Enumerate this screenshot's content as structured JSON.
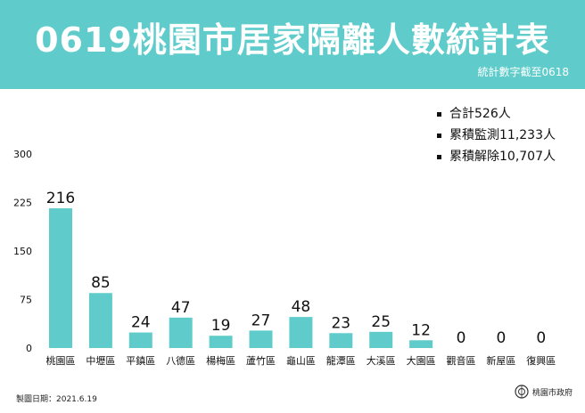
{
  "header": {
    "title": "0619桃園市居家隔離人數統計表",
    "subtitle": "統計數字截至0618"
  },
  "summary": {
    "items": [
      {
        "label": "合計526人"
      },
      {
        "label": "累積監測11,233人"
      },
      {
        "label": "累積解除10,707人"
      }
    ]
  },
  "footer": {
    "date": "製圖日期：2021.6.19",
    "org_logo_text": "桃園市政府"
  },
  "colors": {
    "header_bg": "#5fcccb",
    "bar": "#5fcccb"
  },
  "chart_data": {
    "type": "bar",
    "title": "",
    "xlabel": "",
    "ylabel": "",
    "ylim": [
      0,
      300
    ],
    "yticks": [
      0,
      75,
      150,
      225,
      300
    ],
    "grid": false,
    "legend": "none",
    "categories": [
      "桃園區",
      "中壢區",
      "平鎮區",
      "八德區",
      "楊梅區",
      "蘆竹區",
      "龜山區",
      "龍潭區",
      "大溪區",
      "大園區",
      "觀音區",
      "新屋區",
      "復興區"
    ],
    "values": [
      216,
      85,
      24,
      47,
      19,
      27,
      48,
      23,
      25,
      12,
      0,
      0,
      0
    ],
    "data_labels": true
  }
}
